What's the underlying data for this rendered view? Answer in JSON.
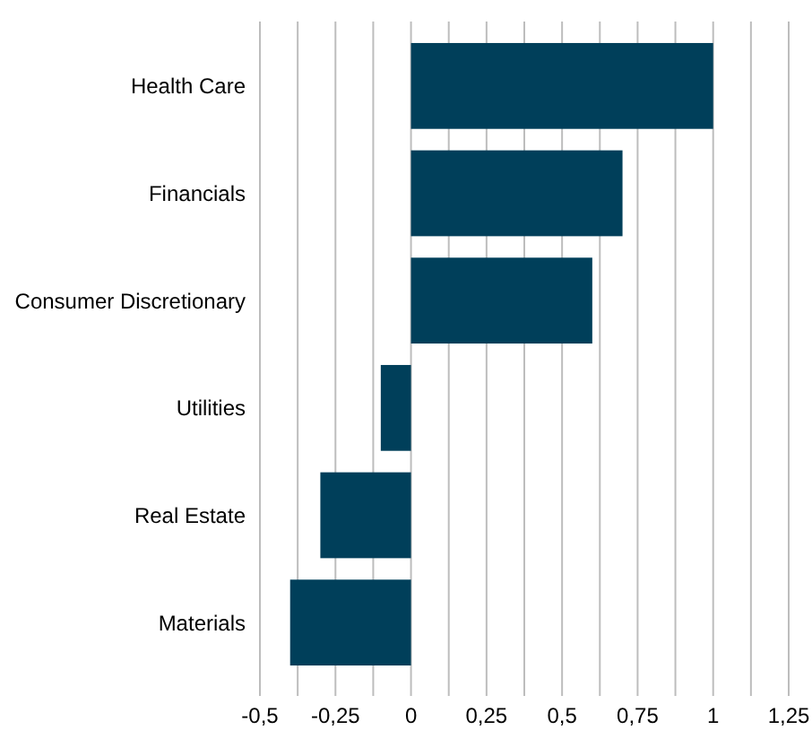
{
  "chart_data": {
    "type": "bar",
    "orientation": "horizontal",
    "categories": [
      "Health Care",
      "Financials",
      "Consumer Discretionary",
      "Utilities",
      "Real Estate",
      "Materials"
    ],
    "values": [
      1.0,
      0.7,
      0.6,
      -0.1,
      -0.3,
      -0.4
    ],
    "color": "#003f5a",
    "xlim": [
      -0.5,
      1.25
    ],
    "xticks": [
      {
        "value": -0.5,
        "label": "-0,5"
      },
      {
        "value": -0.375,
        "label": null
      },
      {
        "value": -0.25,
        "label": "-0,25"
      },
      {
        "value": -0.125,
        "label": null
      },
      0,
      {
        "value": 0.125,
        "label": null
      },
      {
        "value": 0.25,
        "label": "0,25"
      },
      {
        "value": 0.375,
        "label": null
      },
      {
        "value": 0.5,
        "label": "0,5"
      },
      {
        "value": 0.625,
        "label": null
      },
      {
        "value": 0.75,
        "label": "0,75"
      },
      {
        "value": 0.875,
        "label": null
      },
      1,
      {
        "value": 1.125,
        "label": null
      },
      {
        "value": 1.25,
        "label": "1,25"
      }
    ],
    "grid": true
  }
}
